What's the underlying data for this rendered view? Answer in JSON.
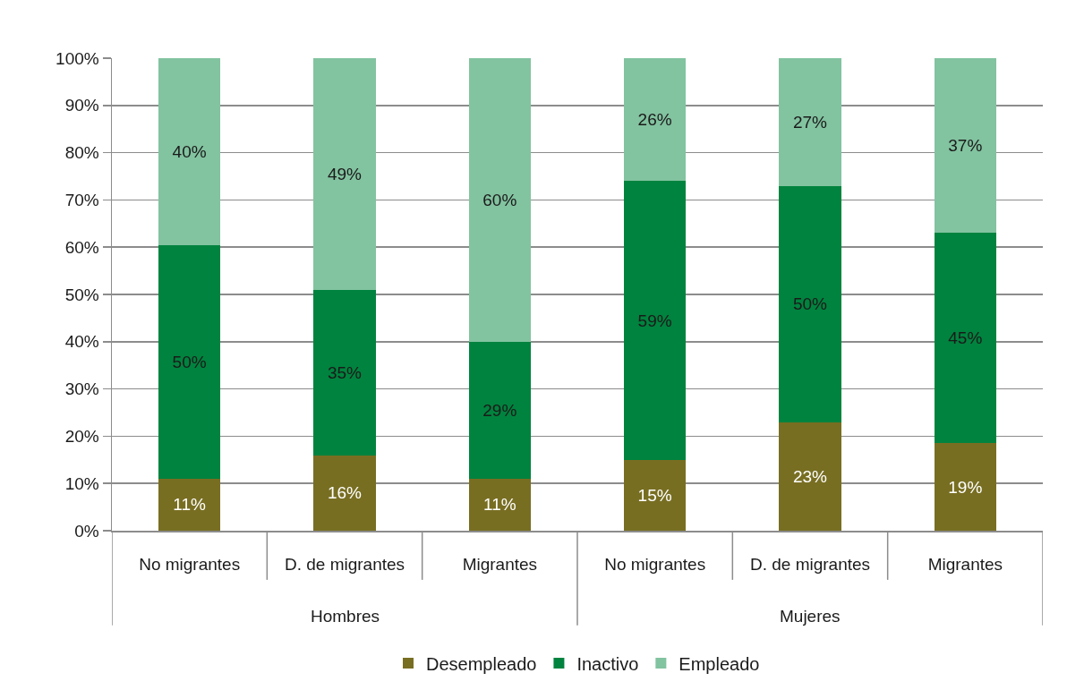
{
  "chart_data": {
    "type": "bar",
    "stacked": true,
    "categories": [
      "No migrantes",
      "D. de migrantes",
      "Migrantes",
      "No migrantes",
      "D. de migrantes",
      "Migrantes"
    ],
    "series": [
      {
        "name": "Desempleado",
        "color": "#786e22",
        "values": [
          11,
          16,
          11,
          15,
          23,
          18.5
        ],
        "value_labels": [
          "11%",
          "16%",
          "11%",
          "15%",
          "23%",
          "19%"
        ]
      },
      {
        "name": "Inactivo",
        "color": "#00833e",
        "values": [
          49.5,
          35,
          29,
          59,
          50,
          44.5
        ],
        "value_labels": [
          "50%",
          "35%",
          "29%",
          "59%",
          "50%",
          "45%"
        ]
      },
      {
        "name": "Empleado",
        "color": "#82c3a0",
        "values": [
          39.5,
          49,
          60,
          26,
          27,
          37
        ],
        "value_labels": [
          "40%",
          "49%",
          "60%",
          "26%",
          "27%",
          "37%"
        ]
      }
    ],
    "ylim": [
      0,
      100
    ],
    "yticks": [
      {
        "value": 0,
        "label": "0%"
      },
      {
        "value": 10,
        "label": "10%"
      },
      {
        "value": 20,
        "label": "20%"
      },
      {
        "value": 30,
        "label": "30%"
      },
      {
        "value": 40,
        "label": "40%"
      },
      {
        "value": 50,
        "label": "50%"
      },
      {
        "value": 60,
        "label": "60%"
      },
      {
        "value": 70,
        "label": "70%"
      },
      {
        "value": 80,
        "label": "80%"
      },
      {
        "value": 90,
        "label": "90%"
      },
      {
        "value": 100,
        "label": "100%"
      }
    ],
    "grid": "y",
    "legend": "bottom",
    "annotations": [
      "Hombres",
      "Mujeres"
    ]
  }
}
